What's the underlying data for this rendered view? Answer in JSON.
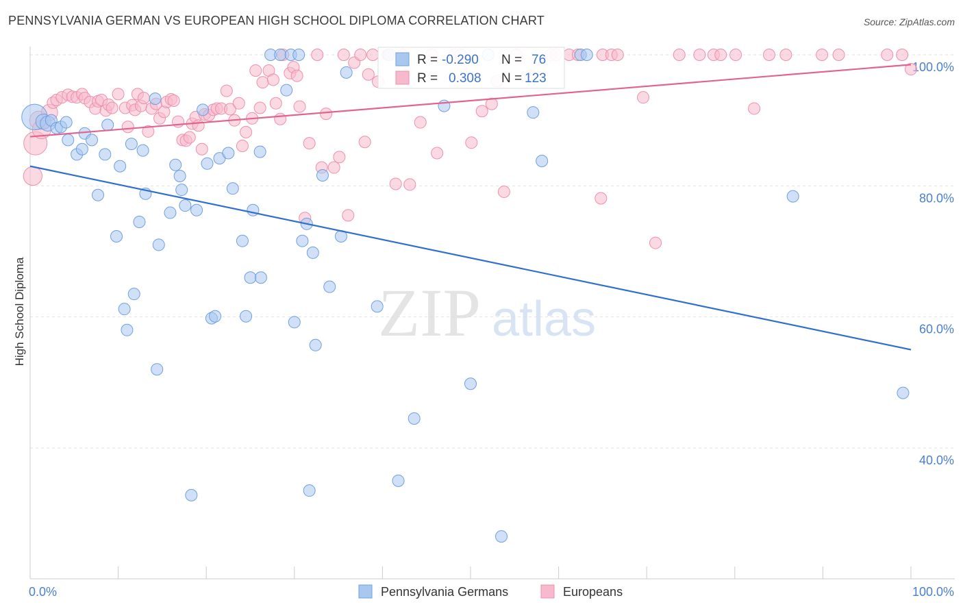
{
  "title": "PENNSYLVANIA GERMAN VS EUROPEAN HIGH SCHOOL DIPLOMA CORRELATION CHART",
  "source": "Source: ZipAtlas.com",
  "watermark": {
    "zip": "ZIP",
    "atlas": "atlas"
  },
  "colors": {
    "blue_fill": "#a9c8f0",
    "blue_stroke": "#6f9fe0",
    "blue_line": "#2f6fd0",
    "pink_fill": "#f7b9cc",
    "pink_stroke": "#ee8fad",
    "pink_line": "#e0648f",
    "tick_text": "#4a7fd0",
    "grid": "#e3e3e3"
  },
  "chart_data": {
    "type": "scatter",
    "title": "PENNSYLVANIA GERMAN VS EUROPEAN HIGH SCHOOL DIPLOMA CORRELATION CHART",
    "xlabel": "",
    "ylabel": "High School Diploma",
    "xlim": [
      0,
      100
    ],
    "ylim": [
      20,
      103
    ],
    "x_tick_labels": [
      "0.0%",
      "100.0%"
    ],
    "y_ticks": [
      40,
      60,
      80,
      100
    ],
    "y_tick_labels": [
      "40.0%",
      "60.0%",
      "80.0%",
      "100.0%"
    ],
    "grid": true,
    "legend": [
      {
        "name": "Pennsylvania Germans",
        "r_label": "R =",
        "r_value": "-0.290",
        "n_label": "N =",
        "n_value": "76"
      },
      {
        "name": "Europeans",
        "r_label": "R =",
        "r_value": "0.308",
        "n_label": "N =",
        "n_value": "123"
      }
    ],
    "series": [
      {
        "name": "Pennsylvania Germans",
        "trend": {
          "x": [
            0,
            100
          ],
          "y": [
            83.0,
            55.0
          ]
        },
        "points": [
          [
            0.5,
            90.5
          ],
          [
            1.5,
            89.8
          ],
          [
            2,
            89.5
          ],
          [
            2.4,
            90
          ],
          [
            3,
            88.8
          ],
          [
            3.5,
            89
          ],
          [
            4.1,
            89.7
          ],
          [
            4.3,
            87
          ],
          [
            5.3,
            84.8
          ],
          [
            5.9,
            85.6
          ],
          [
            6.2,
            88
          ],
          [
            7,
            87
          ],
          [
            7.7,
            78.6
          ],
          [
            8.5,
            84.8
          ],
          [
            8.8,
            89.3
          ],
          [
            9.8,
            72.3
          ],
          [
            10.2,
            83
          ],
          [
            10.7,
            61.2
          ],
          [
            11,
            58
          ],
          [
            11.5,
            86.4
          ],
          [
            11.8,
            63.5
          ],
          [
            12.4,
            74.5
          ],
          [
            12.8,
            85.4
          ],
          [
            13.1,
            78.8
          ],
          [
            14.2,
            93.3
          ],
          [
            14.4,
            52
          ],
          [
            14.6,
            71
          ],
          [
            15.9,
            75.9
          ],
          [
            16.5,
            83.2
          ],
          [
            17,
            81.5
          ],
          [
            17.2,
            79.4
          ],
          [
            17.6,
            77
          ],
          [
            18.3,
            32.8
          ],
          [
            18.9,
            76.3
          ],
          [
            19.6,
            91.6
          ],
          [
            20.1,
            83.4
          ],
          [
            20.6,
            59.8
          ],
          [
            21,
            60.1
          ],
          [
            21.5,
            84.2
          ],
          [
            22.5,
            85
          ],
          [
            23,
            79.6
          ],
          [
            24.1,
            71.6
          ],
          [
            24.5,
            60.1
          ],
          [
            25,
            66
          ],
          [
            25.3,
            76.3
          ],
          [
            26.1,
            85.2
          ],
          [
            26.2,
            66
          ],
          [
            27.3,
            100
          ],
          [
            28.4,
            100
          ],
          [
            29.1,
            94.6
          ],
          [
            29.6,
            100
          ],
          [
            30,
            59.2
          ],
          [
            30.5,
            100
          ],
          [
            30.9,
            71.6
          ],
          [
            31.4,
            74.2
          ],
          [
            31.7,
            33.5
          ],
          [
            32.1,
            69.8
          ],
          [
            32.4,
            55.7
          ],
          [
            33.2,
            81.6
          ],
          [
            34,
            64.6
          ],
          [
            35.3,
            72.3
          ],
          [
            35.9,
            97.3
          ],
          [
            39.4,
            61.6
          ],
          [
            40.7,
            100
          ],
          [
            41.8,
            35
          ],
          [
            43.6,
            44.5
          ],
          [
            47,
            92.2
          ],
          [
            50,
            49.8
          ],
          [
            52,
            100
          ],
          [
            53.5,
            26.5
          ],
          [
            57.1,
            91.2
          ],
          [
            58.1,
            83.8
          ],
          [
            62.5,
            100
          ],
          [
            63.2,
            100
          ],
          [
            86.6,
            78.4
          ],
          [
            99.1,
            48.4
          ]
        ],
        "sizes": {
          "0": 2.2,
          "1": 1.3,
          "2": 1.3
        }
      },
      {
        "name": "Europeans",
        "trend": {
          "x": [
            0,
            100
          ],
          "y": [
            87.5,
            98.5
          ]
        },
        "points": [
          [
            0.3,
            81.5
          ],
          [
            0.6,
            86.5
          ],
          [
            1,
            90
          ],
          [
            1.3,
            88.6
          ],
          [
            2.2,
            91.2
          ],
          [
            2.6,
            92.7
          ],
          [
            3,
            93.1
          ],
          [
            3.6,
            93.5
          ],
          [
            4.3,
            93.9
          ],
          [
            4.8,
            93.6
          ],
          [
            5.3,
            93.5
          ],
          [
            5.9,
            94
          ],
          [
            6.2,
            93.4
          ],
          [
            6.8,
            92.8
          ],
          [
            7.4,
            91.8
          ],
          [
            7.7,
            92.9
          ],
          [
            8.1,
            93.1
          ],
          [
            8.6,
            91.5
          ],
          [
            8.9,
            92.4
          ],
          [
            9.3,
            91.9
          ],
          [
            10,
            94
          ],
          [
            10.8,
            91.9
          ],
          [
            11.1,
            89
          ],
          [
            11.6,
            92.3
          ],
          [
            11.9,
            91.6
          ],
          [
            12.2,
            94
          ],
          [
            12.6,
            92.2
          ],
          [
            12.9,
            93.4
          ],
          [
            13.4,
            88.3
          ],
          [
            13.8,
            91.8
          ],
          [
            14.3,
            92.5
          ],
          [
            14.7,
            90.3
          ],
          [
            15.2,
            91.3
          ],
          [
            15.5,
            92.8
          ],
          [
            16,
            93.2
          ],
          [
            16.3,
            93
          ],
          [
            16.8,
            89.8
          ],
          [
            17.3,
            87
          ],
          [
            17.7,
            86.9
          ],
          [
            18.1,
            87.4
          ],
          [
            18.4,
            89.5
          ],
          [
            18.8,
            90.5
          ],
          [
            19.1,
            89.2
          ],
          [
            19.5,
            85.6
          ],
          [
            19.8,
            90.9
          ],
          [
            20.3,
            90.8
          ],
          [
            20.8,
            91.6
          ],
          [
            21.2,
            91.8
          ],
          [
            21.7,
            91.8
          ],
          [
            22.3,
            94.5
          ],
          [
            22.7,
            91.7
          ],
          [
            23.2,
            90
          ],
          [
            23.7,
            92.6
          ],
          [
            24.1,
            86.1
          ],
          [
            24.5,
            88.2
          ],
          [
            25.2,
            90.3
          ],
          [
            25.6,
            97.6
          ],
          [
            26.1,
            91.9
          ],
          [
            26.4,
            95.8
          ],
          [
            27.1,
            97.6
          ],
          [
            27.6,
            96.2
          ],
          [
            27.9,
            92.6
          ],
          [
            28.4,
            90.2
          ],
          [
            28.7,
            100
          ],
          [
            29.5,
            97.2
          ],
          [
            29.9,
            98.1
          ],
          [
            30.3,
            96.8
          ],
          [
            30.6,
            92.1
          ],
          [
            31.2,
            75.1
          ],
          [
            31.7,
            86.5
          ],
          [
            32.6,
            100
          ],
          [
            33.1,
            82.8
          ],
          [
            33.6,
            91
          ],
          [
            34.5,
            82.8
          ],
          [
            35.1,
            84.4
          ],
          [
            35.6,
            100
          ],
          [
            36.1,
            75.5
          ],
          [
            36.8,
            98.8
          ],
          [
            37.5,
            100
          ],
          [
            38,
            86.7
          ],
          [
            38.4,
            97
          ],
          [
            38.9,
            100
          ],
          [
            39.5,
            95.9
          ],
          [
            40.6,
            100
          ],
          [
            40.9,
            100
          ],
          [
            41.5,
            80.3
          ],
          [
            42.3,
            100
          ],
          [
            43.1,
            80.2
          ],
          [
            44.3,
            89.7
          ],
          [
            45.6,
            100
          ],
          [
            46.2,
            85
          ],
          [
            48.2,
            100
          ],
          [
            48.9,
            100
          ],
          [
            50.1,
            86.6
          ],
          [
            51.3,
            91.4
          ],
          [
            52.4,
            92.5
          ],
          [
            53,
            96
          ],
          [
            53.8,
            79.1
          ],
          [
            55.2,
            100
          ],
          [
            56.8,
            96.8
          ],
          [
            59.1,
            100
          ],
          [
            59.7,
            100
          ],
          [
            61.2,
            100
          ],
          [
            62.2,
            100
          ],
          [
            64.8,
            78.1
          ],
          [
            65,
            100
          ],
          [
            66,
            100
          ],
          [
            66.7,
            100
          ],
          [
            69.6,
            93.5
          ],
          [
            71,
            71.3
          ],
          [
            73.7,
            100
          ],
          [
            76,
            100
          ],
          [
            77.6,
            100
          ],
          [
            78.4,
            100
          ],
          [
            80.1,
            100
          ],
          [
            82.2,
            91.8
          ],
          [
            83.9,
            100
          ],
          [
            85.8,
            100
          ],
          [
            89.9,
            100
          ],
          [
            91.8,
            100
          ],
          [
            97.3,
            100
          ],
          [
            99,
            100
          ],
          [
            100,
            97.8
          ]
        ],
        "sizes": {
          "0": 1.6,
          "1": 2.0,
          "2": 1.6,
          "3": 1.6,
          "4": 1.4
        }
      }
    ]
  }
}
